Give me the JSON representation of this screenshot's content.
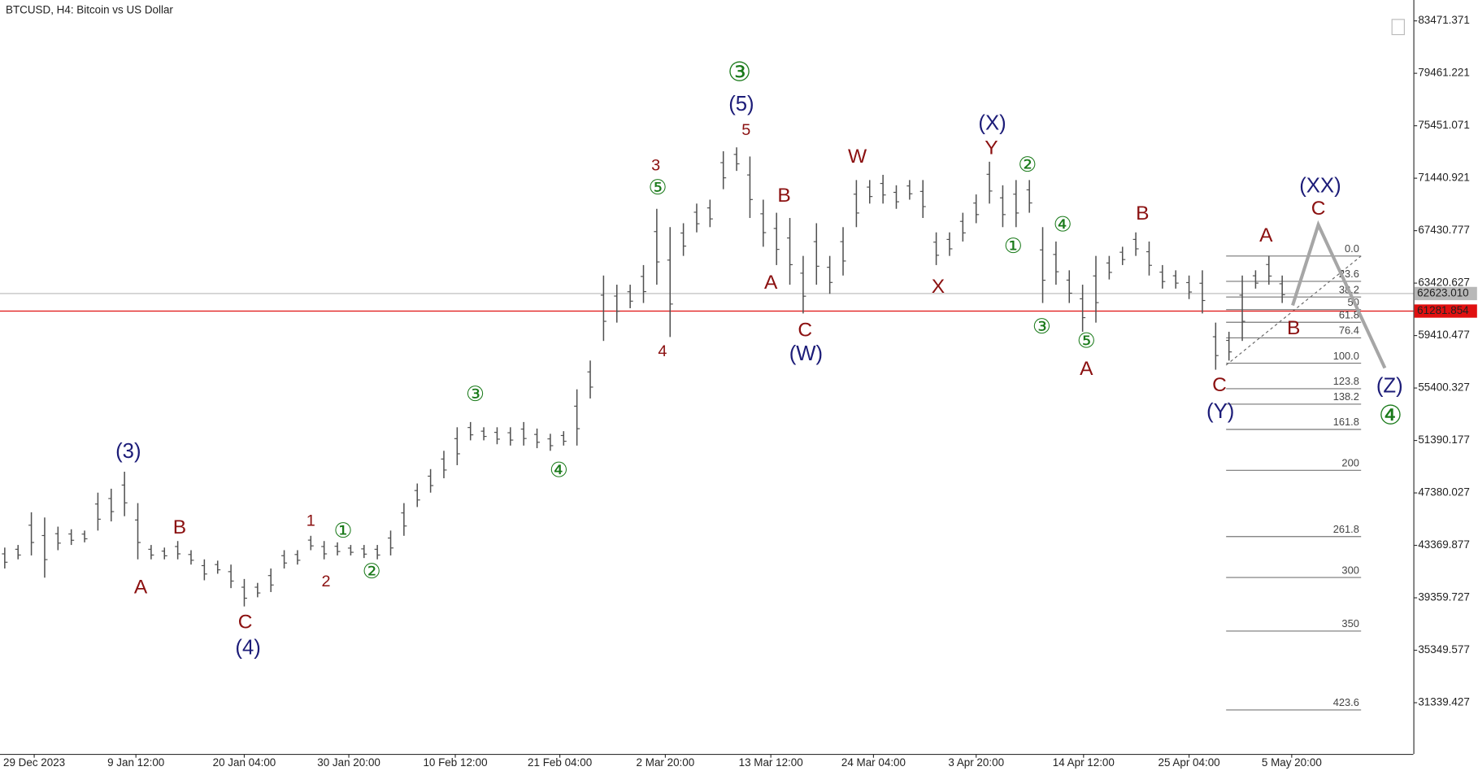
{
  "chart_data": {
    "type": "range-bar",
    "title": "BTCUSD, H4:  Bitcoin vs US Dollar",
    "color": "#505050",
    "high": [
      43200,
      43400,
      45900,
      45500,
      44800,
      44600,
      44500,
      47400,
      47700,
      49000,
      46600,
      43400,
      43200,
      43700,
      43000,
      42300,
      42200,
      41900,
      40800,
      40500,
      41600,
      43000,
      43000,
      44100,
      43700,
      43600,
      43400,
      43400,
      43400,
      44500,
      46600,
      48100,
      49200,
      50600,
      52400,
      52800,
      52400,
      52400,
      52400,
      52800,
      52300,
      51900,
      52100,
      55300,
      57500,
      64000,
      63300,
      63300,
      64800,
      69100,
      67700,
      68000,
      69500,
      69800,
      73500,
      73800,
      73100,
      69800,
      68800,
      68400,
      65500,
      68000,
      65500,
      67700,
      71300,
      71300,
      71700,
      70900,
      71300,
      71300,
      67300,
      67300,
      68800,
      70200,
      72700,
      70900,
      71300,
      71300,
      67700,
      66600,
      64400,
      63300,
      65500,
      65500,
      66200,
      67300,
      66600,
      64800,
      64400,
      64000,
      64400,
      60400,
      59700,
      64000,
      64400,
      65500,
      64000
    ],
    "low": [
      41600,
      42300,
      42600,
      40900,
      43000,
      43400,
      43600,
      44500,
      45200,
      45600,
      42300,
      42300,
      42300,
      42300,
      41900,
      40700,
      41200,
      40100,
      38700,
      39400,
      39800,
      41600,
      41900,
      43000,
      42300,
      42600,
      42600,
      42400,
      42300,
      42600,
      44100,
      46300,
      47400,
      48500,
      49500,
      51400,
      51400,
      51100,
      51000,
      51000,
      50800,
      50600,
      51000,
      51000,
      54600,
      59000,
      60400,
      61500,
      61900,
      63300,
      59300,
      65500,
      67300,
      67700,
      70600,
      72000,
      68400,
      66200,
      64800,
      63300,
      61100,
      63300,
      62600,
      64000,
      67700,
      69500,
      69500,
      69100,
      69800,
      68400,
      64800,
      65500,
      66600,
      68000,
      69500,
      67700,
      67700,
      68800,
      61900,
      63300,
      61900,
      59700,
      60400,
      63700,
      64800,
      65500,
      64000,
      63000,
      63000,
      62200,
      61100,
      56800,
      57500,
      59000,
      63000,
      63300,
      61900
    ],
    "ylim": [
      27423,
      85066
    ],
    "yticks": [
      83471.371,
      79461.221,
      75451.071,
      71440.921,
      67430.777,
      63420.627,
      59410.477,
      55400.327,
      51390.177,
      47380.027,
      43369.877,
      39359.727,
      35349.577,
      31339.427
    ],
    "x_labels": [
      "29 Dec 2023",
      "9 Jan 12:00",
      "20 Jan 04:00",
      "30 Jan 20:00",
      "10 Feb 12:00",
      "21 Feb 04:00",
      "2 Mar 20:00",
      "13 Mar 12:00",
      "24 Mar 04:00",
      "3 Apr 20:00",
      "14 Apr 12:00",
      "25 Apr 04:00",
      "5 May 20:00"
    ],
    "price_lines": [
      {
        "value": 62623.01,
        "label": "62623.010",
        "color": "#b8b8b8"
      },
      {
        "value": 61281.854,
        "label": "61281.854",
        "color": "#e01010"
      }
    ],
    "fibonacci": {
      "color": "#777777",
      "levels": [
        {
          "label": "0.0",
          "price": 65490
        },
        {
          "label": "23.6",
          "price": 63556
        },
        {
          "label": "38.2",
          "price": 62360
        },
        {
          "label": "50",
          "price": 61394
        },
        {
          "label": "61.8",
          "price": 60427
        },
        {
          "label": "76.4",
          "price": 59231
        },
        {
          "label": "100.0",
          "price": 57297
        },
        {
          "label": "123.8",
          "price": 55347
        },
        {
          "label": "138.2",
          "price": 54168
        },
        {
          "label": "161.8",
          "price": 52234
        },
        {
          "label": "200",
          "price": 49104
        },
        {
          "label": "261.8",
          "price": 44041
        },
        {
          "label": "300",
          "price": 40911
        },
        {
          "label": "350",
          "price": 36815
        },
        {
          "label": "423.6",
          "price": 30785
        }
      ]
    },
    "projection": {
      "color": "#a6a6a6",
      "values": [
        61720,
        67880,
        56930
      ]
    },
    "annotations": [
      {
        "text": "(3)",
        "color": "#1c1c78"
      },
      {
        "text": "A",
        "color": "#8b1010"
      },
      {
        "text": "B",
        "color": "#8b1010"
      },
      {
        "text": "C",
        "color": "#8b1010"
      },
      {
        "text": "(4)",
        "color": "#1c1c78"
      },
      {
        "text": "1",
        "color": "#8b1010"
      },
      {
        "text": "②",
        "color": "#1a7a1a"
      },
      {
        "text": "①",
        "color": "#1a7a1a"
      },
      {
        "text": "2",
        "color": "#8b1010"
      },
      {
        "text": "③",
        "color": "#1a7a1a"
      },
      {
        "text": "④",
        "color": "#1a7a1a"
      },
      {
        "text": "③",
        "color": "#1a7a1a"
      },
      {
        "text": "(5)",
        "color": "#1c1c78"
      },
      {
        "text": "5",
        "color": "#8b1010"
      },
      {
        "text": "3",
        "color": "#8b1010"
      },
      {
        "text": "⑤",
        "color": "#1a7a1a"
      },
      {
        "text": "4",
        "color": "#8b1010"
      },
      {
        "text": "B",
        "color": "#8b1010"
      },
      {
        "text": "A",
        "color": "#8b1010"
      },
      {
        "text": "C",
        "color": "#8b1010"
      },
      {
        "text": "(W)",
        "color": "#1c1c78"
      },
      {
        "text": "W",
        "color": "#8b1010"
      },
      {
        "text": "X",
        "color": "#8b1010"
      },
      {
        "text": "(X)",
        "color": "#1c1c78"
      },
      {
        "text": "Y",
        "color": "#8b1010"
      },
      {
        "text": "②",
        "color": "#1a7a1a"
      },
      {
        "text": "①",
        "color": "#1a7a1a"
      },
      {
        "text": "④",
        "color": "#1a7a1a"
      },
      {
        "text": "③",
        "color": "#1a7a1a"
      },
      {
        "text": "⑤",
        "color": "#1a7a1a"
      },
      {
        "text": "A",
        "color": "#8b1010"
      },
      {
        "text": "B",
        "color": "#8b1010"
      },
      {
        "text": "A",
        "color": "#8b1010"
      },
      {
        "text": "B",
        "color": "#8b1010"
      },
      {
        "text": "C",
        "color": "#8b1010"
      },
      {
        "text": "(Y)",
        "color": "#1c1c78"
      },
      {
        "text": "(XX)",
        "color": "#1c1c78"
      },
      {
        "text": "C",
        "color": "#8b1010"
      },
      {
        "text": "(Z)",
        "color": "#1c1c78"
      },
      {
        "text": "④",
        "color": "#1a7a1a"
      }
    ]
  }
}
